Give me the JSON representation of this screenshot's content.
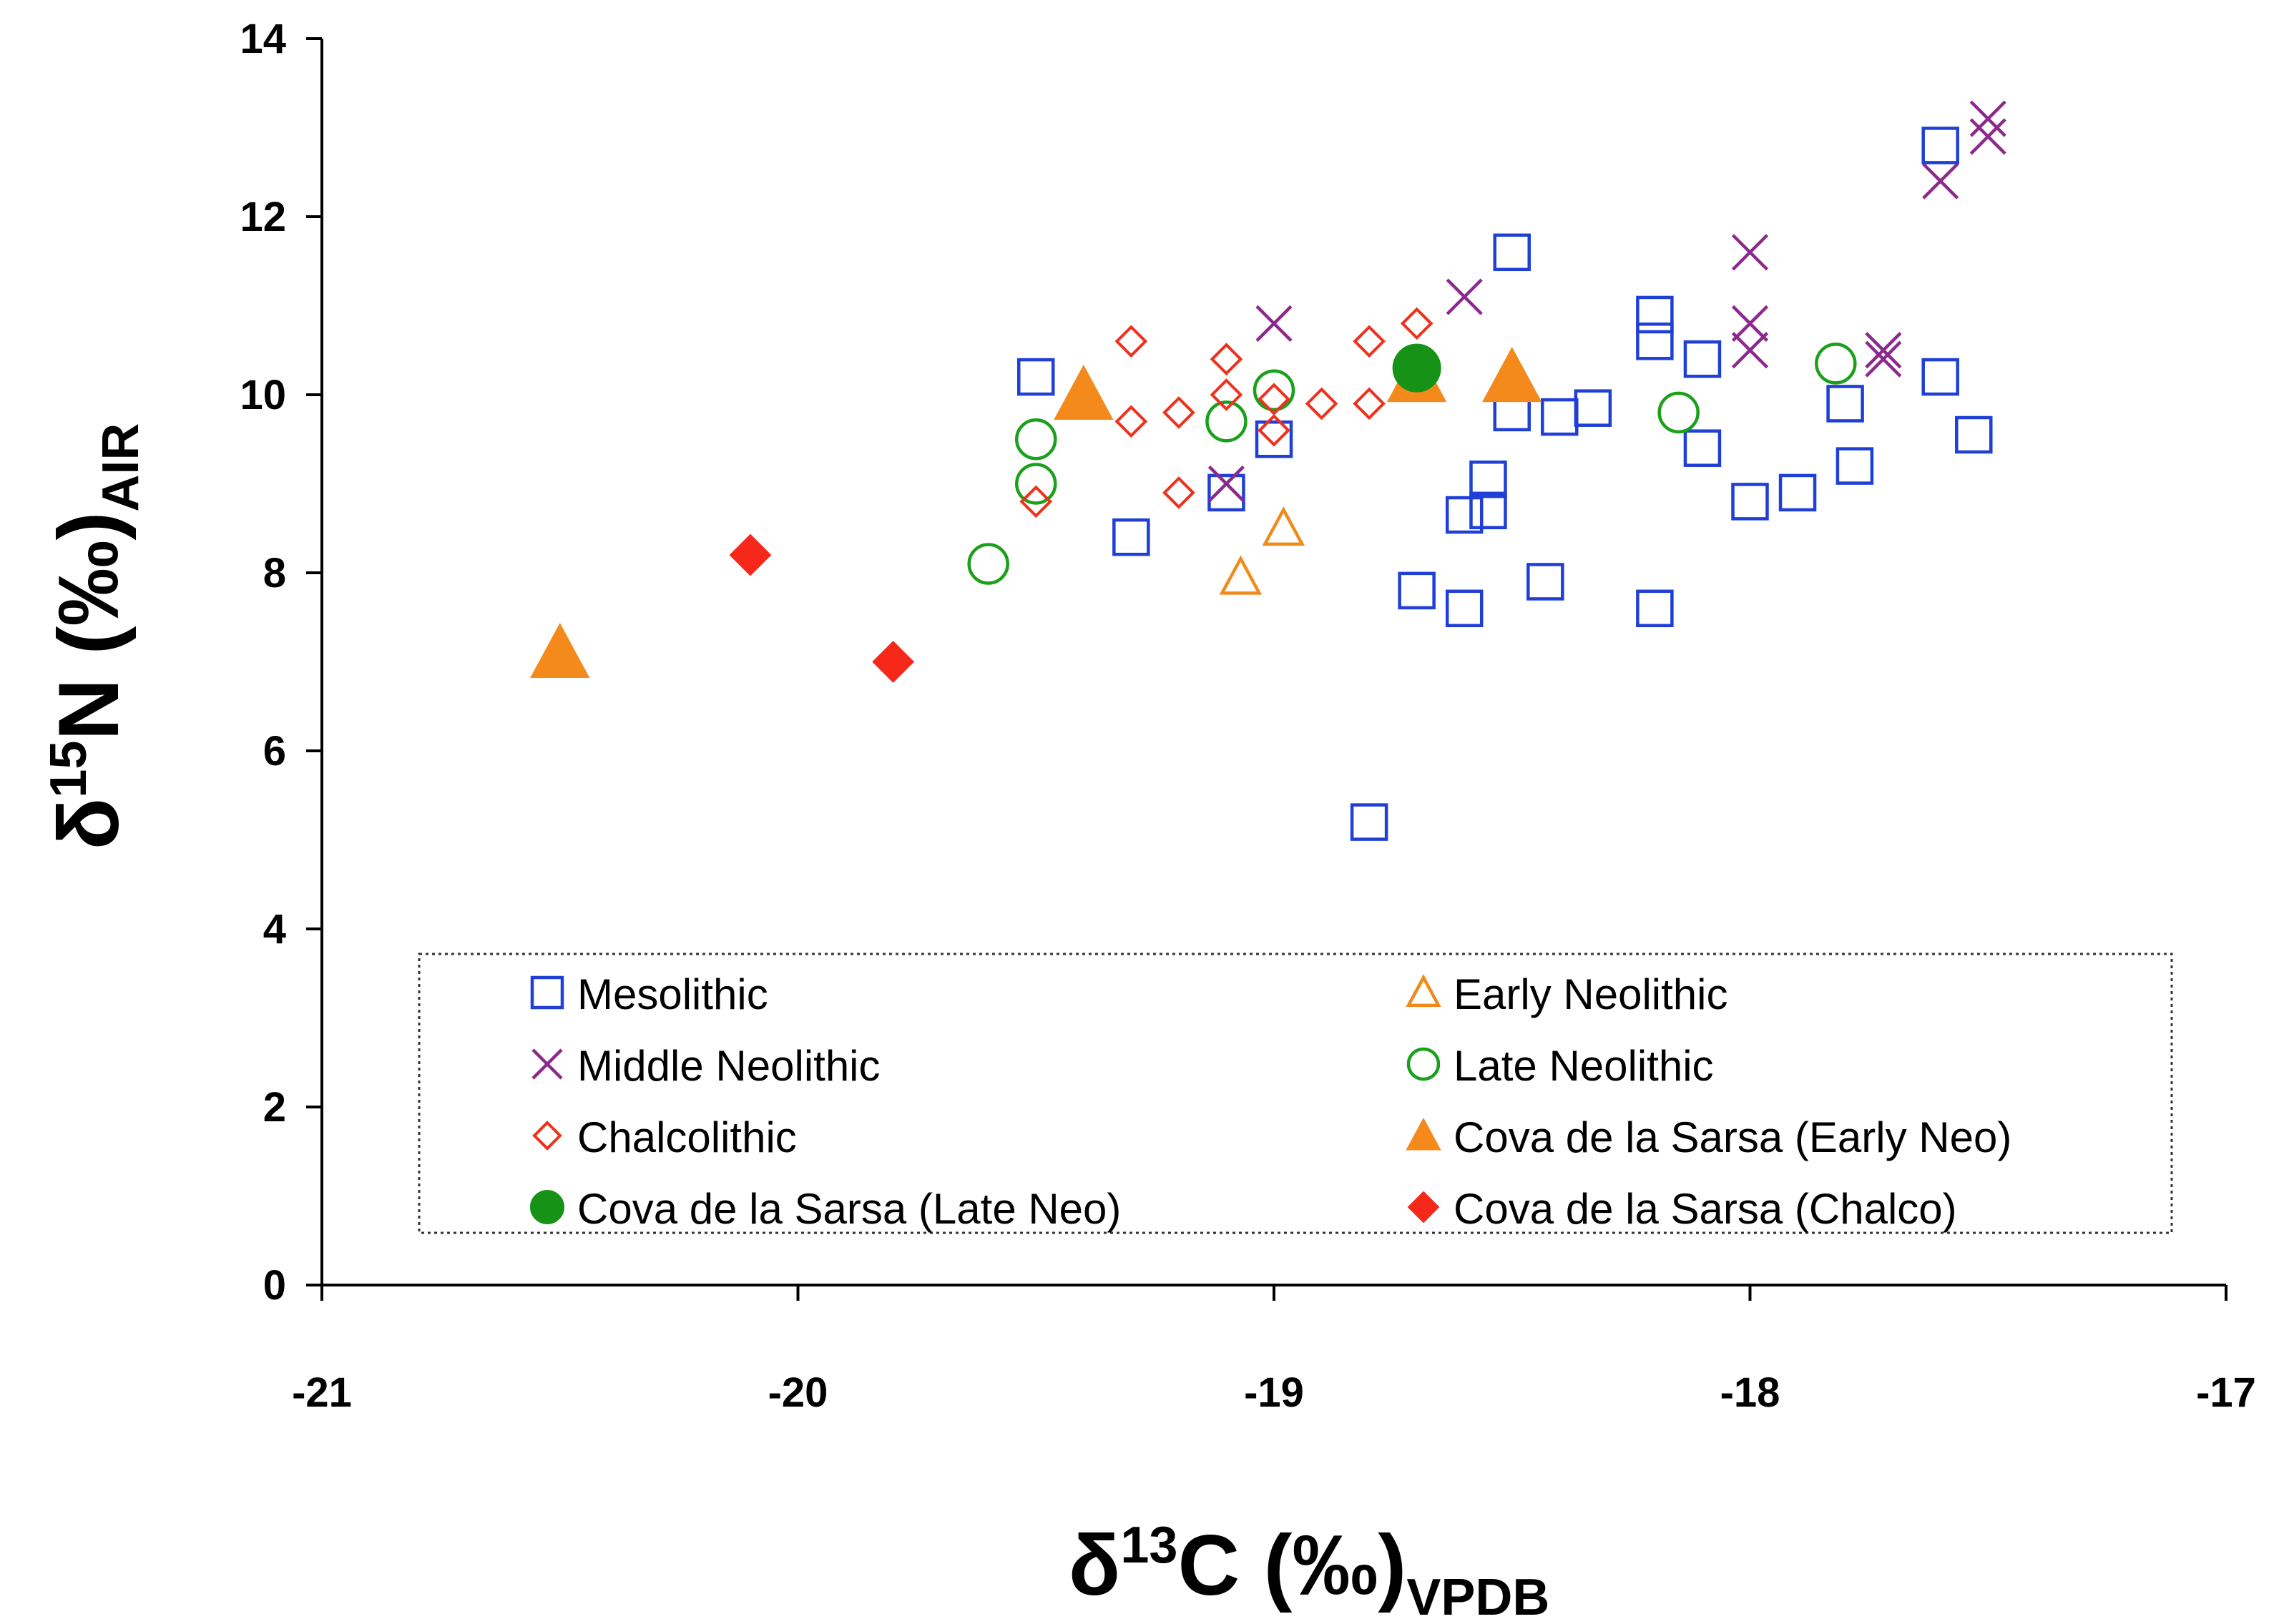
{
  "chart_data": {
    "type": "scatter",
    "xlabel": {
      "main": "δ",
      "sup": "13",
      "rest": "C (‰)",
      "sub": "VPDB"
    },
    "ylabel": {
      "main": "δ",
      "sup": "15",
      "rest": "N (‰)",
      "sub": "AIR"
    },
    "xlim": [
      -21,
      -17
    ],
    "ylim": [
      0,
      14
    ],
    "xticks": [
      -21,
      -20,
      -19,
      -18,
      -17
    ],
    "yticks": [
      0,
      2,
      4,
      6,
      8,
      10,
      12,
      14
    ],
    "grid": false,
    "legend_position": "bottom-center",
    "series": [
      {
        "name": "Mesolithic",
        "marker": "square-open",
        "color": "#1f3fd6",
        "points": [
          [
            -19.5,
            10.2
          ],
          [
            -19.3,
            8.4
          ],
          [
            -19.1,
            8.9
          ],
          [
            -19.0,
            9.5
          ],
          [
            -18.8,
            5.2
          ],
          [
            -18.7,
            7.8
          ],
          [
            -18.6,
            7.6
          ],
          [
            -18.6,
            8.65
          ],
          [
            -18.55,
            9.05
          ],
          [
            -18.55,
            8.7
          ],
          [
            -18.5,
            11.6
          ],
          [
            -18.5,
            9.8
          ],
          [
            -18.43,
            7.9
          ],
          [
            -18.4,
            9.75
          ],
          [
            -18.33,
            9.85
          ],
          [
            -18.2,
            10.9
          ],
          [
            -18.2,
            10.6
          ],
          [
            -18.2,
            7.6
          ],
          [
            -18.1,
            10.4
          ],
          [
            -18.1,
            9.4
          ],
          [
            -18.0,
            8.8
          ],
          [
            -17.9,
            8.9
          ],
          [
            -17.8,
            9.9
          ],
          [
            -17.78,
            9.2
          ],
          [
            -17.6,
            12.8
          ],
          [
            -17.6,
            10.2
          ],
          [
            -17.53,
            9.55
          ]
        ]
      },
      {
        "name": "Early Neolithic",
        "marker": "triangle-open",
        "color": "#f08a1c",
        "points": [
          [
            -19.07,
            7.95
          ],
          [
            -18.98,
            8.5
          ]
        ]
      },
      {
        "name": "Middle Neolithic",
        "marker": "x",
        "color": "#8b2a8c",
        "points": [
          [
            -19.1,
            9.0
          ],
          [
            -19.0,
            10.8
          ],
          [
            -18.6,
            11.1
          ],
          [
            -18.0,
            11.6
          ],
          [
            -18.0,
            10.8
          ],
          [
            -18.0,
            10.5
          ],
          [
            -17.72,
            10.5
          ],
          [
            -17.72,
            10.4
          ],
          [
            -17.6,
            12.4
          ],
          [
            -17.5,
            13.1
          ],
          [
            -17.5,
            12.9
          ]
        ]
      },
      {
        "name": "Late Neolithic",
        "marker": "circle-open",
        "color": "#1aa01a",
        "points": [
          [
            -19.6,
            8.1
          ],
          [
            -19.5,
            9.5
          ],
          [
            -19.5,
            9.0
          ],
          [
            -19.1,
            9.7
          ],
          [
            -19.0,
            10.05
          ],
          [
            -18.15,
            9.8
          ],
          [
            -17.82,
            10.35
          ]
        ]
      },
      {
        "name": "Chalcolithic",
        "marker": "diamond-open",
        "color": "#f0301c",
        "points": [
          [
            -19.5,
            8.8
          ],
          [
            -19.3,
            10.6
          ],
          [
            -19.3,
            9.7
          ],
          [
            -19.2,
            9.8
          ],
          [
            -19.2,
            8.9
          ],
          [
            -19.1,
            10.4
          ],
          [
            -19.1,
            10.0
          ],
          [
            -19.0,
            9.95
          ],
          [
            -19.0,
            9.6
          ],
          [
            -18.9,
            9.9
          ],
          [
            -18.8,
            10.6
          ],
          [
            -18.8,
            9.9
          ],
          [
            -18.7,
            10.8
          ]
        ]
      },
      {
        "name": "Cova de la Sarsa (Early Neo)",
        "marker": "triangle-filled",
        "color": "#f58a1c",
        "points": [
          [
            -20.5,
            7.1
          ],
          [
            -19.4,
            10.0
          ],
          [
            -18.7,
            10.2
          ],
          [
            -18.5,
            10.2
          ]
        ]
      },
      {
        "name": "Cova de la Sarsa (Late Neo)",
        "marker": "circle-filled",
        "color": "#169316",
        "points": [
          [
            -18.7,
            10.3
          ]
        ]
      },
      {
        "name": "Cova de la Sarsa (Chalco)",
        "marker": "diamond-filled",
        "color": "#f5281a",
        "points": [
          [
            -20.1,
            8.2
          ],
          [
            -19.8,
            7.0
          ]
        ]
      }
    ]
  }
}
